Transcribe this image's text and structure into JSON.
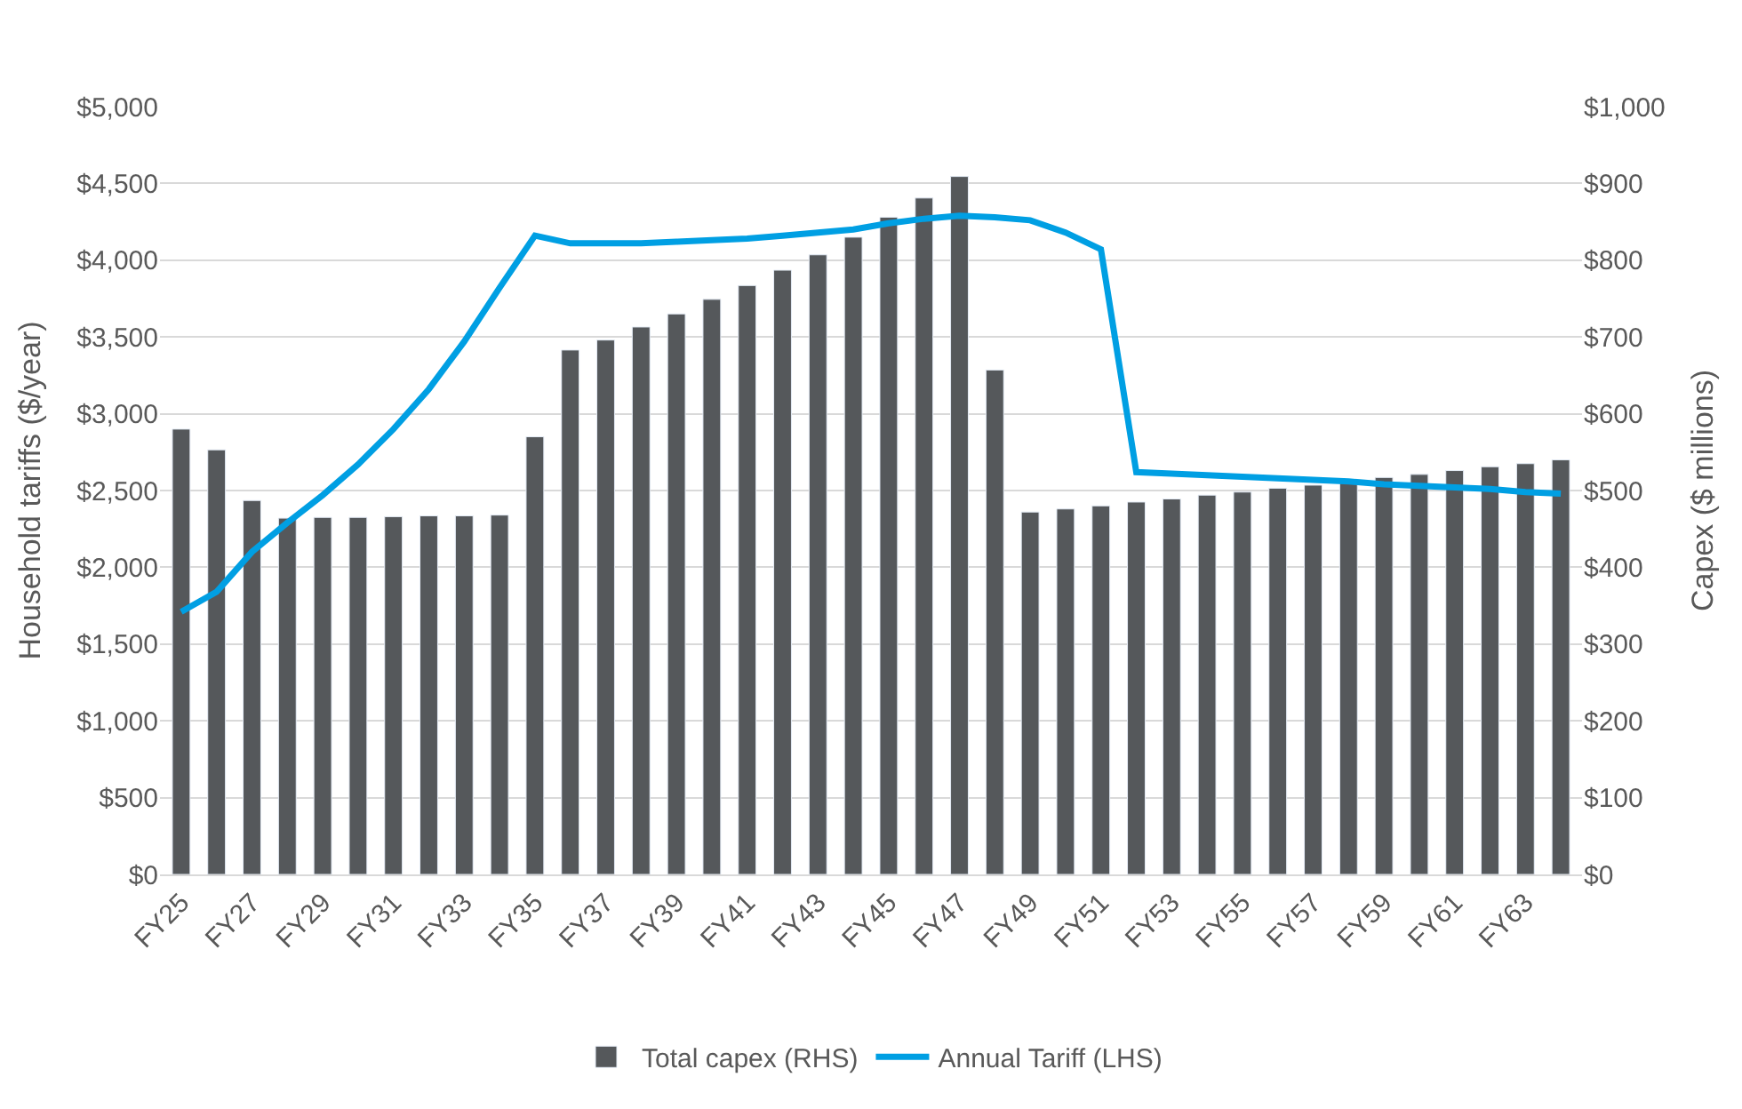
{
  "chart_data": {
    "type": "bar",
    "ylabel": "Household tariffs ($/year)",
    "y2label": "Capex ($ millions)",
    "categories": [
      "FY25",
      null,
      "FY27",
      null,
      "FY29",
      null,
      "FY31",
      null,
      "FY33",
      null,
      "FY35",
      null,
      "FY37",
      null,
      "FY39",
      null,
      "FY41",
      null,
      "FY43",
      null,
      "FY45",
      null,
      "FY47",
      null,
      "FY49",
      null,
      "FY51",
      null,
      "FY53",
      null,
      "FY55",
      null,
      "FY57",
      null,
      "FY59",
      null,
      "FY61",
      null,
      "FY63",
      null
    ],
    "series": [
      {
        "name": "Total capex (RHS)",
        "axis": "y2",
        "color": "#55585b",
        "values": [
          580,
          553,
          487,
          464,
          465,
          465,
          466,
          467,
          467,
          468,
          570,
          683,
          696,
          713,
          730,
          749,
          767,
          787,
          807,
          830,
          856,
          881,
          909,
          657,
          472,
          476,
          480,
          485,
          489,
          494,
          498,
          503,
          507,
          512,
          517,
          521,
          526,
          531,
          535,
          540
        ]
      },
      {
        "name": "Annual Tariff (LHS)",
        "type": "line",
        "axis": "y",
        "color": "#009fe3",
        "values": [
          1710,
          1840,
          2100,
          2290,
          2470,
          2670,
          2900,
          3160,
          3470,
          3820,
          4160,
          4110,
          4110,
          4110,
          4120,
          4130,
          4140,
          4160,
          4180,
          4200,
          4240,
          4270,
          4290,
          4280,
          4260,
          4180,
          4070,
          2620,
          2610,
          2600,
          2590,
          2580,
          2570,
          2560,
          2540,
          2530,
          2520,
          2510,
          2490,
          2480
        ]
      }
    ],
    "ylim": [
      0,
      5000
    ],
    "yticks": [
      {
        "value": 0,
        "label": "$0"
      },
      {
        "value": 500,
        "label": "$500"
      },
      {
        "value": 1000,
        "label": "$1,000"
      },
      {
        "value": 1500,
        "label": "$1,500"
      },
      {
        "value": 2000,
        "label": "$2,000"
      },
      {
        "value": 2500,
        "label": "$2,500"
      },
      {
        "value": 3000,
        "label": "$3,000"
      },
      {
        "value": 3500,
        "label": "$3,500"
      },
      {
        "value": 4000,
        "label": "$4,000"
      },
      {
        "value": 4500,
        "label": "$4,500"
      },
      {
        "value": 5000,
        "label": "$5,000"
      }
    ],
    "y2lim": [
      0,
      1000
    ],
    "y2ticks": [
      {
        "value": 0,
        "label": "$0"
      },
      {
        "value": 100,
        "label": "$100"
      },
      {
        "value": 200,
        "label": "$200"
      },
      {
        "value": 300,
        "label": "$300"
      },
      {
        "value": 400,
        "label": "$400"
      },
      {
        "value": 500,
        "label": "$500"
      },
      {
        "value": 600,
        "label": "$600"
      },
      {
        "value": 700,
        "label": "$700"
      },
      {
        "value": 800,
        "label": "$800"
      },
      {
        "value": 900,
        "label": "$900"
      },
      {
        "value": 1000,
        "label": "$1,000"
      }
    ],
    "grid": "y",
    "legend": "bottom",
    "marker": "none",
    "line_style": "solid"
  }
}
